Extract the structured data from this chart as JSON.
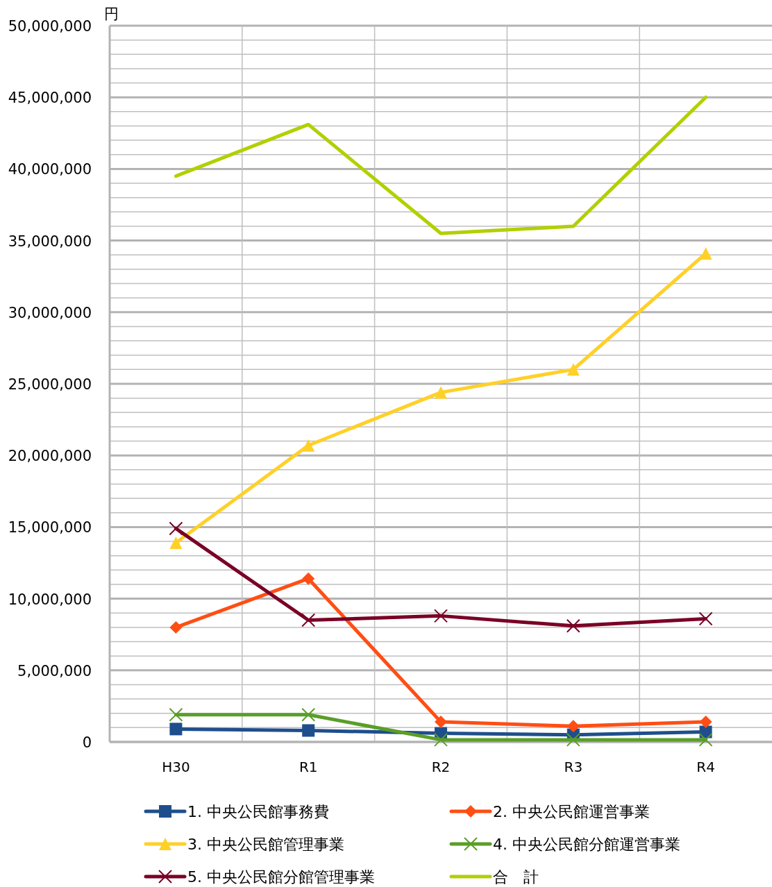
{
  "chart_data": {
    "type": "line",
    "ylabel": "円",
    "categories": [
      "H30",
      "R1",
      "R2",
      "R3",
      "R4"
    ],
    "series": [
      {
        "name": "1. 中央公民館事務費",
        "color": "#1f4e8c",
        "marker": "square",
        "values": [
          900000,
          800000,
          600000,
          500000,
          700000
        ]
      },
      {
        "name": "2. 中央公民館運営事業",
        "color": "#ff4e14",
        "marker": "diamond",
        "values": [
          8000000,
          11400000,
          1400000,
          1100000,
          1400000
        ]
      },
      {
        "name": "3. 中央公民館管理事業",
        "color": "#ffd028",
        "marker": "triangle",
        "values": [
          13900000,
          20700000,
          24400000,
          26000000,
          34100000
        ]
      },
      {
        "name": "4. 中央公民館分館運営事業",
        "color": "#5a9e28",
        "marker": "cross",
        "values": [
          1900000,
          1900000,
          150000,
          150000,
          150000
        ]
      },
      {
        "name": "5. 中央公民館分館管理事業",
        "color": "#7a0026",
        "marker": "cross",
        "values": [
          14900000,
          8500000,
          8800000,
          8100000,
          8600000
        ]
      },
      {
        "name": "合　計",
        "color": "#b2d000",
        "marker": "none",
        "values": [
          39500000,
          43100000,
          35500000,
          36000000,
          45000000
        ]
      }
    ],
    "ylim": [
      0,
      50000000
    ],
    "yticks": [
      {
        "value": 0,
        "label": "0"
      },
      {
        "value": 5000000,
        "label": "5,000,000"
      },
      {
        "value": 10000000,
        "label": "10,000,000"
      },
      {
        "value": 15000000,
        "label": "15,000,000"
      },
      {
        "value": 20000000,
        "label": "20,000,000"
      },
      {
        "value": 25000000,
        "label": "25,000,000"
      },
      {
        "value": 30000000,
        "label": "30,000,000"
      },
      {
        "value": 35000000,
        "label": "35,000,000"
      },
      {
        "value": 40000000,
        "label": "40,000,000"
      },
      {
        "value": 45000000,
        "label": "45,000,000"
      },
      {
        "value": 50000000,
        "label": "50,000,000"
      }
    ],
    "grid": true,
    "legend": "bottom"
  }
}
